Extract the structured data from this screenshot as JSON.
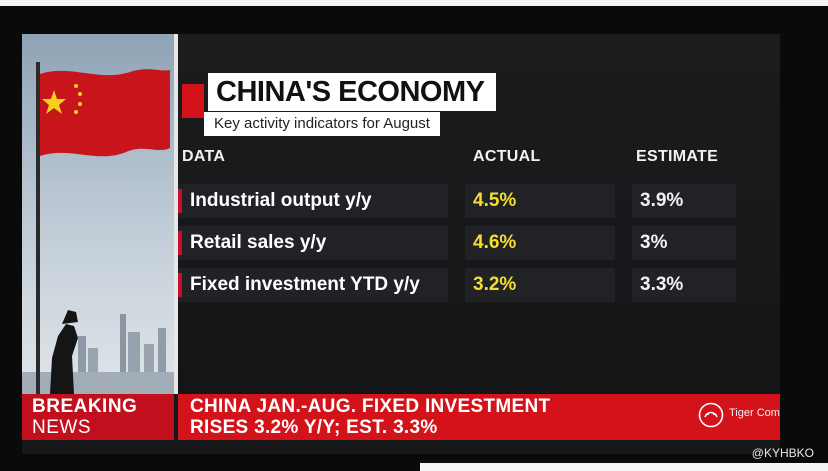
{
  "title": "CHINA'S ECONOMY",
  "subtitle": "Key activity indicators for August",
  "table": {
    "headers": {
      "data": "DATA",
      "actual": "ACTUAL",
      "estimate": "ESTIMATE"
    },
    "rows": [
      {
        "label": "Industrial output y/y",
        "actual": "4.5%",
        "estimate": "3.9%"
      },
      {
        "label": "Retail sales y/y",
        "actual": "4.6%",
        "estimate": "3%"
      },
      {
        "label": "Fixed investment YTD y/y",
        "actual": "3.2%",
        "estimate": "3.3%"
      }
    ]
  },
  "banner": {
    "breaking_line1": "BREAKING",
    "breaking_line2": "NEWS",
    "headline_line1": "CHINA JAN.-AUG. FIXED INVESTMENT",
    "headline_line2": "RISES 3.2% Y/Y; EST. 3.3%"
  },
  "watermark": {
    "logo_icon": "tiger-community-logo-icon",
    "text": "Tiger Community"
  },
  "handle": "@KYHBKO",
  "colors": {
    "accent_red": "#d3121a",
    "actual_yellow": "#f5df2c",
    "panel": "#161718"
  }
}
